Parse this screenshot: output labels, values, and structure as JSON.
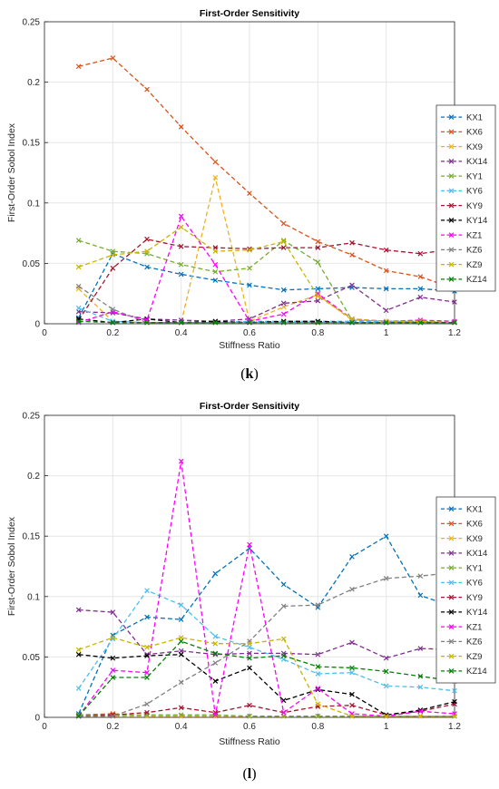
{
  "panels": [
    {
      "caption": "(k)",
      "caption_letter": "k",
      "chart_data": {
        "type": "line",
        "title": "First-Order Sensitivity",
        "xlabel": "Stiffness Ratio",
        "ylabel": "First-Order Sobol Index",
        "xlim": [
          0,
          1.2
        ],
        "ylim": [
          0,
          0.25
        ],
        "xticks": [
          0,
          0.2,
          0.4,
          0.6,
          0.8,
          1,
          1.2
        ],
        "xtick_labels": [
          "0",
          "0.2",
          "0.4",
          "0.6",
          "0.8",
          "1",
          "1.2"
        ],
        "yticks": [
          0,
          0.05,
          0.1,
          0.15,
          0.2,
          0.25
        ],
        "ytick_labels": [
          "0",
          "0.05",
          "0.1",
          "0.15",
          "0.2",
          "0.25"
        ],
        "grid": true,
        "legend_position": "right",
        "x": [
          0.1,
          0.2,
          0.3,
          0.4,
          0.5,
          0.6,
          0.7,
          0.8,
          0.9,
          1.0,
          1.1,
          1.2
        ],
        "series": [
          {
            "name": "KX1",
            "color": "#0072BD",
            "values": [
              0.005,
              0.058,
              0.047,
              0.041,
              0.036,
              0.032,
              0.028,
              0.029,
              0.03,
              0.029,
              0.029,
              0.027
            ]
          },
          {
            "name": "KX6",
            "color": "#D95319",
            "values": [
              0.213,
              0.22,
              0.194,
              0.163,
              0.134,
              0.108,
              0.083,
              0.068,
              0.057,
              0.044,
              0.039,
              0.029
            ]
          },
          {
            "name": "KX9",
            "color": "#EDB120",
            "values": [
              0.029,
              0.002,
              0.001,
              0.001,
              0.121,
              0.002,
              0.014,
              0.024,
              0.003,
              0.002,
              0.001,
              0.001
            ]
          },
          {
            "name": "KX14",
            "color": "#7E2F8E",
            "values": [
              0.01,
              0.009,
              0.004,
              0.003,
              0.002,
              0.004,
              0.017,
              0.019,
              0.032,
              0.011,
              0.022,
              0.018
            ]
          },
          {
            "name": "KY1",
            "color": "#77AC30",
            "values": [
              0.069,
              0.06,
              0.058,
              0.049,
              0.043,
              0.046,
              0.069,
              0.051,
              0.003,
              0.002,
              0.002,
              0.001
            ]
          },
          {
            "name": "KY6",
            "color": "#4DBEEE",
            "values": [
              0.013,
              0.002,
              0.001,
              0.001,
              0.001,
              0.002,
              0.002,
              0.002,
              0.002,
              0.002,
              0.001,
              0.001
            ]
          },
          {
            "name": "KY9",
            "color": "#A2142F",
            "values": [
              0.003,
              0.046,
              0.07,
              0.064,
              0.063,
              0.062,
              0.063,
              0.063,
              0.067,
              0.061,
              0.058,
              0.062
            ]
          },
          {
            "name": "KY14",
            "color": "#000000",
            "values": [
              0.004,
              0.001,
              0.004,
              0.001,
              0.002,
              0.001,
              0.002,
              0.002,
              0.001,
              0.001,
              0.001,
              0.001
            ]
          },
          {
            "name": "KZ1",
            "color": "#FF00FF",
            "values": [
              0.001,
              0.01,
              0.003,
              0.089,
              0.049,
              0.002,
              0.008,
              0.025,
              0.004,
              0.002,
              0.003,
              0.002
            ]
          },
          {
            "name": "KZ6",
            "color": "#808080",
            "values": [
              0.031,
              0.012,
              0.001,
              0.001,
              0.001,
              0.001,
              0.001,
              0.001,
              0.001,
              0.001,
              0.001,
              0.001
            ]
          },
          {
            "name": "KZ9",
            "color": "#C8B400",
            "values": [
              0.047,
              0.057,
              0.06,
              0.08,
              0.06,
              0.061,
              0.068,
              0.023,
              0.004,
              0.002,
              0.002,
              0.001
            ]
          },
          {
            "name": "KZ14",
            "color": "#008000",
            "values": [
              0.002,
              0.001,
              0.001,
              0.001,
              0.001,
              0.001,
              0.001,
              0.001,
              0.001,
              0.001,
              0.001,
              0.001
            ]
          }
        ]
      }
    },
    {
      "caption": "(l)",
      "caption_letter": "l",
      "chart_data": {
        "type": "line",
        "title": "First-Order Sensitivity",
        "xlabel": "Stiffness Ratio",
        "ylabel": "First-Order Sobol Index",
        "xlim": [
          0,
          1.2
        ],
        "ylim": [
          0,
          0.25
        ],
        "xticks": [
          0,
          0.2,
          0.4,
          0.6,
          0.8,
          1,
          1.2
        ],
        "xtick_labels": [
          "0",
          "0.2",
          "0.4",
          "0.6",
          "0.8",
          "1",
          "1.2"
        ],
        "yticks": [
          0,
          0.05,
          0.1,
          0.15,
          0.2,
          0.25
        ],
        "ytick_labels": [
          "0",
          "0.05",
          "0.1",
          "0.15",
          "0.2",
          "0.25"
        ],
        "grid": true,
        "legend_position": "right",
        "x": [
          0.1,
          0.2,
          0.3,
          0.4,
          0.5,
          0.6,
          0.7,
          0.8,
          0.9,
          1.0,
          1.1,
          1.2
        ],
        "series": [
          {
            "name": "KX1",
            "color": "#0072BD",
            "values": [
              0.003,
              0.068,
              0.083,
              0.081,
              0.119,
              0.14,
              0.11,
              0.091,
              0.133,
              0.15,
              0.101,
              0.091
            ]
          },
          {
            "name": "KX6",
            "color": "#D95319",
            "values": [
              0.002,
              0.003,
              0.001,
              0.001,
              0.001,
              0.001,
              0.001,
              0.001,
              0.001,
              0.001,
              0.001,
              0.001
            ]
          },
          {
            "name": "KX9",
            "color": "#EDB120",
            "values": [
              0.001,
              0.001,
              0.001,
              0.001,
              0.001,
              0.001,
              0.001,
              0.001,
              0.001,
              0.001,
              0.001,
              0.001
            ]
          },
          {
            "name": "KX14",
            "color": "#7E2F8E",
            "values": [
              0.089,
              0.087,
              0.052,
              0.055,
              0.052,
              0.053,
              0.053,
              0.052,
              0.062,
              0.049,
              0.057,
              0.056
            ]
          },
          {
            "name": "KY1",
            "color": "#77AC30",
            "values": [
              0.002,
              0.002,
              0.002,
              0.002,
              0.002,
              0.001,
              0.001,
              0.001,
              0.001,
              0.001,
              0.001,
              0.001
            ]
          },
          {
            "name": "KY6",
            "color": "#4DBEEE",
            "values": [
              0.024,
              0.065,
              0.105,
              0.093,
              0.067,
              0.058,
              0.048,
              0.036,
              0.037,
              0.026,
              0.025,
              0.022
            ]
          },
          {
            "name": "KY9",
            "color": "#A2142F",
            "values": [
              0.001,
              0.002,
              0.004,
              0.008,
              0.004,
              0.01,
              0.004,
              0.009,
              0.01,
              0.002,
              0.005,
              0.011
            ]
          },
          {
            "name": "KY14",
            "color": "#000000",
            "values": [
              0.052,
              0.049,
              0.051,
              0.052,
              0.03,
              0.041,
              0.014,
              0.023,
              0.019,
              0.002,
              0.006,
              0.013
            ]
          },
          {
            "name": "KZ1",
            "color": "#FF00FF",
            "values": [
              0.001,
              0.039,
              0.037,
              0.212,
              0.002,
              0.143,
              0.004,
              0.024,
              0.003,
              0.001,
              0.005,
              0.003
            ]
          },
          {
            "name": "KZ6",
            "color": "#808080",
            "values": [
              0.001,
              0.001,
              0.011,
              0.029,
              0.045,
              0.063,
              0.092,
              0.093,
              0.106,
              0.115,
              0.117,
              0.12
            ]
          },
          {
            "name": "KZ9",
            "color": "#C8B400",
            "values": [
              0.056,
              0.066,
              0.058,
              0.066,
              0.061,
              0.061,
              0.065,
              0.011,
              0.001,
              0.001,
              0.001,
              0.001
            ]
          },
          {
            "name": "KZ14",
            "color": "#008000",
            "values": [
              0.001,
              0.033,
              0.033,
              0.063,
              0.053,
              0.049,
              0.051,
              0.042,
              0.041,
              0.038,
              0.034,
              0.03
            ]
          }
        ]
      }
    }
  ]
}
